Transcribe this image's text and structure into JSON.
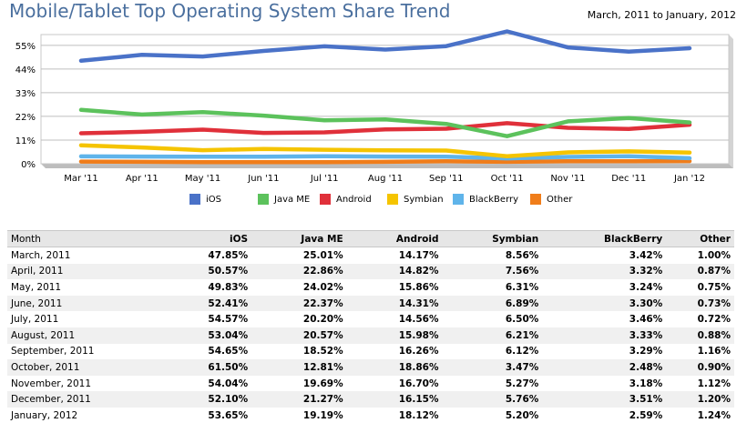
{
  "header": {
    "title": "Mobile/Tablet Top Operating System Share Trend",
    "date_range": "March, 2011 to January, 2012"
  },
  "chart_data": {
    "type": "line",
    "categories": [
      "Mar '11",
      "Apr '11",
      "May '11",
      "Jun '11",
      "Jul '11",
      "Aug '11",
      "Sep '11",
      "Oct '11",
      "Nov '11",
      "Dec '11",
      "Jan '12"
    ],
    "yticks": [
      "0%",
      "11%",
      "22%",
      "33%",
      "44%",
      "55%"
    ],
    "ylim": [
      0,
      60
    ],
    "ytick_values": [
      0,
      11,
      22,
      33,
      44,
      55
    ],
    "grid": true,
    "legend": "bottom",
    "series": [
      {
        "name": "iOS",
        "color": "#4a72c8",
        "values": [
          47.85,
          50.57,
          49.83,
          52.41,
          54.57,
          53.04,
          54.65,
          61.5,
          54.04,
          52.1,
          53.65
        ]
      },
      {
        "name": "Java ME",
        "color": "#5cc25c",
        "values": [
          25.01,
          22.86,
          24.02,
          22.37,
          20.2,
          20.57,
          18.52,
          12.81,
          19.69,
          21.27,
          19.19
        ]
      },
      {
        "name": "Android",
        "color": "#e0303a",
        "values": [
          14.17,
          14.82,
          15.86,
          14.31,
          14.56,
          15.98,
          16.26,
          18.86,
          16.7,
          16.15,
          18.12
        ]
      },
      {
        "name": "Symbian",
        "color": "#f5c400",
        "values": [
          8.56,
          7.56,
          6.31,
          6.89,
          6.5,
          6.21,
          6.12,
          3.47,
          5.27,
          5.76,
          5.2
        ]
      },
      {
        "name": "BlackBerry",
        "color": "#5fb4ea",
        "values": [
          3.42,
          3.32,
          3.24,
          3.3,
          3.46,
          3.33,
          3.29,
          2.48,
          3.18,
          3.51,
          2.59
        ]
      },
      {
        "name": "Other",
        "color": "#f07d1a",
        "values": [
          1.0,
          0.87,
          0.75,
          0.73,
          0.72,
          0.88,
          1.16,
          0.9,
          1.12,
          1.2,
          1.24
        ]
      }
    ]
  },
  "table": {
    "headers": [
      "Month",
      "iOS",
      "Java ME",
      "Android",
      "Symbian",
      "BlackBerry",
      "Other"
    ],
    "rows": [
      [
        "March, 2011",
        "47.85%",
        "25.01%",
        "14.17%",
        "8.56%",
        "3.42%",
        "1.00%"
      ],
      [
        "April, 2011",
        "50.57%",
        "22.86%",
        "14.82%",
        "7.56%",
        "3.32%",
        "0.87%"
      ],
      [
        "May, 2011",
        "49.83%",
        "24.02%",
        "15.86%",
        "6.31%",
        "3.24%",
        "0.75%"
      ],
      [
        "June, 2011",
        "52.41%",
        "22.37%",
        "14.31%",
        "6.89%",
        "3.30%",
        "0.73%"
      ],
      [
        "July, 2011",
        "54.57%",
        "20.20%",
        "14.56%",
        "6.50%",
        "3.46%",
        "0.72%"
      ],
      [
        "August, 2011",
        "53.04%",
        "20.57%",
        "15.98%",
        "6.21%",
        "3.33%",
        "0.88%"
      ],
      [
        "September, 2011",
        "54.65%",
        "18.52%",
        "16.26%",
        "6.12%",
        "3.29%",
        "1.16%"
      ],
      [
        "October, 2011",
        "61.50%",
        "12.81%",
        "18.86%",
        "3.47%",
        "2.48%",
        "0.90%"
      ],
      [
        "November, 2011",
        "54.04%",
        "19.69%",
        "16.70%",
        "5.27%",
        "3.18%",
        "1.12%"
      ],
      [
        "December, 2011",
        "52.10%",
        "21.27%",
        "16.15%",
        "5.76%",
        "3.51%",
        "1.20%"
      ],
      [
        "January, 2012",
        "53.65%",
        "19.19%",
        "18.12%",
        "5.20%",
        "2.59%",
        "1.24%"
      ]
    ]
  }
}
